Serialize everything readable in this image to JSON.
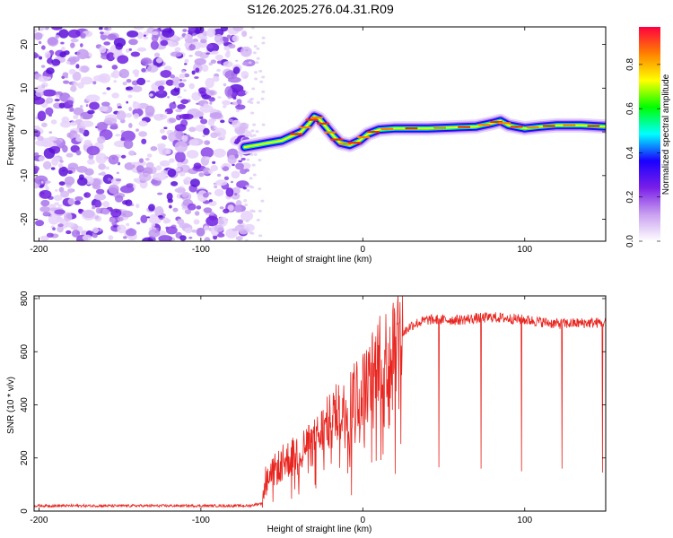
{
  "title": "S126.2025.276.04.31.R09",
  "chart_data": [
    {
      "type": "heatmap",
      "name": "spectrogram",
      "xlabel": "Height of straight line (km)",
      "ylabel": "Frequency (Hz)",
      "xlim": [
        -203,
        150
      ],
      "ylim": [
        -25,
        24
      ],
      "xticks": [
        -200,
        -100,
        0,
        100
      ],
      "yticks": [
        -20,
        -10,
        0,
        10,
        20
      ],
      "noise_region_x": [
        -203,
        -70
      ],
      "signal_start_x": -73,
      "ridge": [
        {
          "x": -73,
          "y": -3.5
        },
        {
          "x": -65,
          "y": -3.0
        },
        {
          "x": -58,
          "y": -2.5
        },
        {
          "x": -50,
          "y": -2.0
        },
        {
          "x": -44,
          "y": -1.0
        },
        {
          "x": -38,
          "y": 0.0
        },
        {
          "x": -33,
          "y": 2.0
        },
        {
          "x": -30,
          "y": 3.5
        },
        {
          "x": -27,
          "y": 3.0
        },
        {
          "x": -22,
          "y": 0.8
        },
        {
          "x": -18,
          "y": -1.0
        },
        {
          "x": -14,
          "y": -2.5
        },
        {
          "x": -8,
          "y": -3.0
        },
        {
          "x": -2,
          "y": -2.0
        },
        {
          "x": 3,
          "y": -0.5
        },
        {
          "x": 10,
          "y": 0.5
        },
        {
          "x": 20,
          "y": 0.8
        },
        {
          "x": 40,
          "y": 0.8
        },
        {
          "x": 55,
          "y": 1.0
        },
        {
          "x": 70,
          "y": 1.2
        },
        {
          "x": 80,
          "y": 2.0
        },
        {
          "x": 85,
          "y": 2.5
        },
        {
          "x": 90,
          "y": 1.5
        },
        {
          "x": 100,
          "y": 0.8
        },
        {
          "x": 110,
          "y": 1.2
        },
        {
          "x": 120,
          "y": 1.5
        },
        {
          "x": 135,
          "y": 1.5
        },
        {
          "x": 150,
          "y": 1.2
        }
      ],
      "colorbar": {
        "label": "Normalized spectral amplitude",
        "ticks": [
          "0.0",
          "0.2",
          "0.4",
          "0.6",
          "0.8"
        ],
        "range": [
          0,
          0.97
        ],
        "colors": [
          "#ffffff",
          "#c9a0f0",
          "#7a1fe8",
          "#1a00ff",
          "#00ffff",
          "#00ff00",
          "#ffff00",
          "#ff8000",
          "#ff0040"
        ]
      }
    },
    {
      "type": "line",
      "name": "snr",
      "xlabel": "Height of straight line (km)",
      "ylabel": "SNR (10 * v/v)",
      "xlim": [
        -203,
        150
      ],
      "ylim": [
        0,
        810
      ],
      "xticks": [
        -200,
        -100,
        0,
        100
      ],
      "yticks": [
        0,
        200,
        400,
        600,
        800
      ],
      "color": "#e8251f",
      "anchors": [
        [
          -203,
          20
        ],
        [
          -70,
          20
        ],
        [
          -62,
          30
        ],
        [
          -60,
          120
        ],
        [
          -50,
          180
        ],
        [
          -40,
          220
        ],
        [
          -30,
          260
        ],
        [
          -20,
          340
        ],
        [
          -10,
          400
        ],
        [
          0,
          460
        ],
        [
          10,
          560
        ],
        [
          20,
          640
        ],
        [
          30,
          700
        ],
        [
          40,
          720
        ],
        [
          60,
          720
        ],
        [
          80,
          730
        ],
        [
          100,
          720
        ],
        [
          120,
          705
        ],
        [
          150,
          710
        ]
      ],
      "dips": [
        {
          "x": -7,
          "y": 60
        },
        {
          "x": 20,
          "y": 140
        },
        {
          "x": 47,
          "y": 165
        },
        {
          "x": 73,
          "y": 160
        },
        {
          "x": 98,
          "y": 150
        },
        {
          "x": 123,
          "y": 160
        },
        {
          "x": 148,
          "y": 145
        }
      ]
    }
  ]
}
